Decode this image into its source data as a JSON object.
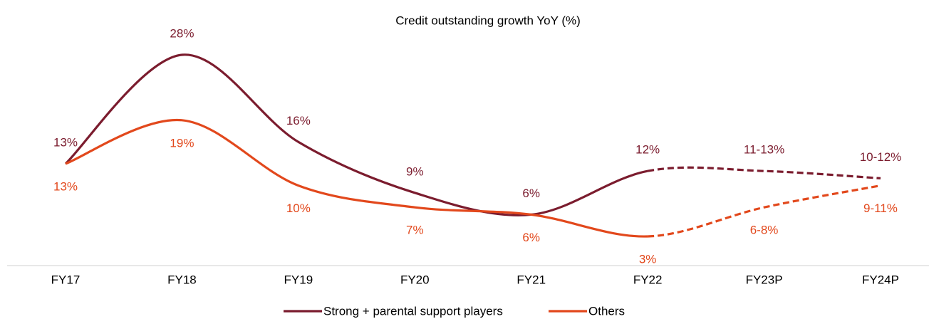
{
  "chart_data": {
    "type": "line",
    "title": "Credit outstanding growth YoY (%)",
    "categories": [
      "FY17",
      "FY18",
      "FY19",
      "FY20",
      "FY21",
      "FY22",
      "FY23P",
      "FY24P"
    ],
    "series": [
      {
        "name": "Strong + parental support players",
        "color": "#7b1c2e",
        "values": [
          13,
          28,
          16,
          9,
          6,
          12,
          12,
          11
        ],
        "value_labels": [
          "13%",
          "28%",
          "16%",
          "9%",
          "6%",
          "12%",
          "11-13%",
          "10-12%"
        ]
      },
      {
        "name": "Others",
        "color": "#e2481c",
        "values": [
          13,
          19,
          10,
          7,
          6,
          3,
          7,
          10
        ],
        "value_labels": [
          "13%",
          "19%",
          "10%",
          "7%",
          "6%",
          "3%",
          "6-8%",
          "9-11%"
        ]
      }
    ],
    "legend": "bottom"
  }
}
